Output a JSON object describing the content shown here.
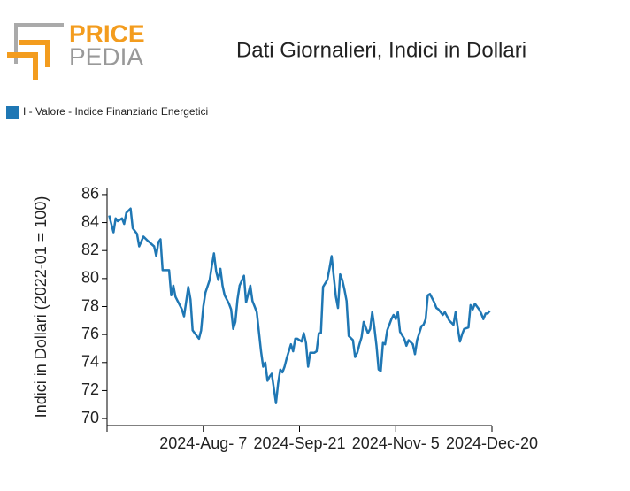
{
  "logo": {
    "top": "PRICE",
    "bottom": "PEDIA"
  },
  "chart_data": {
    "type": "line",
    "title": "Dati Giornalieri, Indici in Dollari",
    "ylabel": "Indici in Dollari (2022-01 = 100)",
    "x": [
      "2024-06-24",
      "2024-06-25",
      "2024-06-26",
      "2024-06-27",
      "2024-06-28",
      "2024-06-30",
      "2024-07-01",
      "2024-07-02",
      "2024-07-04",
      "2024-07-05",
      "2024-07-07",
      "2024-07-08",
      "2024-07-10",
      "2024-07-12",
      "2024-07-15",
      "2024-07-16",
      "2024-07-17",
      "2024-07-18",
      "2024-07-19",
      "2024-07-22",
      "2024-07-23",
      "2024-07-24",
      "2024-07-25",
      "2024-07-28",
      "2024-07-29",
      "2024-07-31",
      "2024-08-01",
      "2024-08-02",
      "2024-08-03",
      "2024-08-05",
      "2024-08-06",
      "2024-08-07",
      "2024-08-08",
      "2024-08-10",
      "2024-08-11",
      "2024-08-12",
      "2024-08-13",
      "2024-08-14",
      "2024-08-15",
      "2024-08-16",
      "2024-08-17",
      "2024-08-19",
      "2024-08-20",
      "2024-08-21",
      "2024-08-22",
      "2024-08-23",
      "2024-08-24",
      "2024-08-26",
      "2024-08-27",
      "2024-08-29",
      "2024-08-30",
      "2024-08-31",
      "2024-09-01",
      "2024-09-03",
      "2024-09-04",
      "2024-09-05",
      "2024-09-06",
      "2024-09-07",
      "2024-09-08",
      "2024-09-10",
      "2024-09-11",
      "2024-09-12",
      "2024-09-13",
      "2024-09-14",
      "2024-09-15",
      "2024-09-17",
      "2024-09-18",
      "2024-09-19",
      "2024-09-20",
      "2024-09-22",
      "2024-09-23",
      "2024-09-24",
      "2024-09-25",
      "2024-09-26",
      "2024-09-28",
      "2024-09-29",
      "2024-09-30",
      "2024-10-01",
      "2024-10-02",
      "2024-10-04",
      "2024-10-05",
      "2024-10-06",
      "2024-10-08",
      "2024-10-09",
      "2024-10-10",
      "2024-10-11",
      "2024-10-12",
      "2024-10-13",
      "2024-10-14",
      "2024-10-16",
      "2024-10-17",
      "2024-10-18",
      "2024-10-19",
      "2024-10-20",
      "2024-10-21",
      "2024-10-23",
      "2024-10-24",
      "2024-10-25",
      "2024-10-26",
      "2024-10-27",
      "2024-10-28",
      "2024-10-29",
      "2024-10-30",
      "2024-10-31",
      "2024-11-01",
      "2024-11-03",
      "2024-11-04",
      "2024-11-05",
      "2024-11-06",
      "2024-11-07",
      "2024-11-09",
      "2024-11-10",
      "2024-11-11",
      "2024-11-13",
      "2024-11-14",
      "2024-11-15",
      "2024-11-17",
      "2024-11-18",
      "2024-11-19",
      "2024-11-20",
      "2024-11-21",
      "2024-11-23",
      "2024-11-24",
      "2024-11-25",
      "2024-11-27",
      "2024-11-28",
      "2024-11-29",
      "2024-11-30",
      "2024-12-02",
      "2024-12-03",
      "2024-12-04",
      "2024-12-05",
      "2024-12-06",
      "2024-12-07",
      "2024-12-09",
      "2024-12-10",
      "2024-12-11",
      "2024-12-12",
      "2024-12-14",
      "2024-12-15",
      "2024-12-16",
      "2024-12-17",
      "2024-12-18",
      "2024-12-19"
    ],
    "series": [
      {
        "name": "I - Valore - Indice Finanziario Energetici",
        "color": "#1f77b4",
        "values": [
          84.5,
          83.9,
          83.3,
          84.3,
          84.1,
          84.3,
          83.9,
          84.7,
          85.0,
          83.6,
          83.2,
          82.3,
          83.0,
          82.7,
          82.3,
          81.6,
          82.6,
          82.8,
          80.6,
          80.6,
          78.8,
          79.5,
          78.7,
          77.8,
          77.3,
          79.4,
          78.5,
          76.3,
          76.1,
          75.7,
          76.3,
          78.0,
          79.0,
          79.9,
          80.9,
          81.8,
          80.5,
          79.9,
          80.7,
          79.5,
          78.8,
          78.2,
          77.8,
          76.4,
          76.9,
          78.5,
          79.5,
          80.2,
          78.3,
          79.5,
          78.4,
          78.0,
          77.6,
          74.8,
          73.7,
          74.0,
          72.7,
          73.0,
          73.2,
          71.1,
          72.5,
          73.5,
          73.3,
          73.7,
          74.3,
          75.3,
          74.8,
          75.7,
          75.7,
          75.5,
          76.1,
          75.4,
          73.7,
          74.7,
          74.7,
          74.8,
          76.1,
          76.1,
          79.4,
          79.9,
          80.7,
          81.6,
          78.7,
          77.9,
          80.3,
          79.9,
          79.2,
          78.4,
          75.9,
          75.6,
          74.4,
          74.7,
          75.3,
          75.8,
          76.9,
          76.1,
          76.4,
          77.6,
          76.5,
          75.2,
          73.5,
          73.4,
          75.4,
          75.3,
          76.3,
          77.1,
          77.4,
          77.1,
          77.6,
          76.2,
          75.7,
          75.2,
          75.6,
          75.3,
          74.6,
          75.6,
          76.6,
          76.7,
          77.1,
          78.8,
          78.9,
          78.3,
          77.9,
          77.8,
          77.4,
          77.6,
          77.3,
          77.0,
          76.7,
          77.6,
          76.5,
          75.5,
          76.0,
          76.4,
          76.5,
          78.1,
          77.8,
          78.2,
          77.8,
          77.5,
          77.1,
          77.5,
          77.5,
          77.7
        ]
      }
    ],
    "xlim": [
      "2024-06-23",
      "2024-12-20"
    ],
    "xticks": [
      {
        "value": "2024-08-07",
        "label": "2024-Aug- 7"
      },
      {
        "value": "2024-09-21",
        "label": "2024-Sep-21"
      },
      {
        "value": "2024-11-05",
        "label": "2024-Nov- 5"
      },
      {
        "value": "2024-12-20",
        "label": "2024-Dec-20"
      }
    ],
    "ylim": [
      69.5,
      86.5
    ],
    "yticks": [
      70,
      72,
      74,
      76,
      78,
      80,
      82,
      84,
      86
    ],
    "legend": "top-left"
  }
}
